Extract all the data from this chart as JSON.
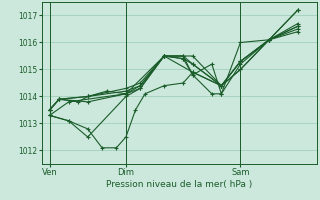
{
  "bg_color": "#cce8dc",
  "grid_color": "#99ccb3",
  "line_color": "#1a5c2a",
  "xlabel": "Pression niveau de la mer( hPa )",
  "xlabel_color": "#1a5c2a",
  "tick_color": "#1a5c2a",
  "ylim": [
    1011.5,
    1017.5
  ],
  "yticks": [
    1012,
    1013,
    1014,
    1015,
    1016,
    1017
  ],
  "xtick_labels": [
    "Ven",
    "Dim",
    "Sam"
  ],
  "xtick_positions": [
    0,
    48,
    120
  ],
  "vline_positions": [
    0,
    48,
    120
  ],
  "xlim": [
    -5,
    168
  ],
  "series": [
    [
      [
        0,
        1013.3
      ],
      [
        12,
        1013.8
      ],
      [
        48,
        1014.1
      ],
      [
        72,
        1015.5
      ],
      [
        90,
        1014.9
      ],
      [
        108,
        1014.4
      ],
      [
        120,
        1015.0
      ],
      [
        156,
        1017.2
      ]
    ],
    [
      [
        0,
        1013.3
      ],
      [
        12,
        1013.1
      ],
      [
        24,
        1012.8
      ],
      [
        33,
        1012.1
      ],
      [
        42,
        1012.1
      ],
      [
        48,
        1012.5
      ],
      [
        54,
        1013.5
      ],
      [
        60,
        1014.1
      ],
      [
        72,
        1014.4
      ],
      [
        84,
        1014.5
      ],
      [
        90,
        1014.9
      ],
      [
        108,
        1014.4
      ],
      [
        120,
        1015.0
      ],
      [
        156,
        1017.2
      ]
    ],
    [
      [
        0,
        1013.3
      ],
      [
        12,
        1013.1
      ],
      [
        24,
        1012.5
      ],
      [
        48,
        1014.0
      ],
      [
        57,
        1014.3
      ],
      [
        72,
        1015.5
      ],
      [
        84,
        1015.4
      ],
      [
        90,
        1014.8
      ],
      [
        102,
        1015.2
      ],
      [
        108,
        1014.1
      ],
      [
        120,
        1015.2
      ],
      [
        138,
        1016.1
      ],
      [
        156,
        1016.4
      ]
    ],
    [
      [
        0,
        1013.5
      ],
      [
        6,
        1013.9
      ],
      [
        18,
        1013.8
      ],
      [
        24,
        1014.0
      ],
      [
        36,
        1014.2
      ],
      [
        48,
        1014.1
      ],
      [
        57,
        1014.4
      ],
      [
        72,
        1015.5
      ],
      [
        84,
        1015.5
      ],
      [
        90,
        1014.8
      ],
      [
        102,
        1014.1
      ],
      [
        108,
        1014.1
      ],
      [
        120,
        1016.0
      ],
      [
        138,
        1016.1
      ],
      [
        156,
        1016.5
      ]
    ],
    [
      [
        0,
        1013.5
      ],
      [
        6,
        1013.9
      ],
      [
        24,
        1014.0
      ],
      [
        48,
        1014.2
      ],
      [
        57,
        1014.4
      ],
      [
        72,
        1015.5
      ],
      [
        84,
        1015.4
      ],
      [
        90,
        1015.2
      ],
      [
        108,
        1014.4
      ],
      [
        120,
        1015.3
      ],
      [
        138,
        1016.1
      ],
      [
        156,
        1016.6
      ]
    ],
    [
      [
        0,
        1013.5
      ],
      [
        6,
        1013.9
      ],
      [
        24,
        1013.8
      ],
      [
        48,
        1014.1
      ],
      [
        57,
        1014.3
      ],
      [
        72,
        1015.5
      ],
      [
        84,
        1015.5
      ],
      [
        90,
        1015.2
      ],
      [
        108,
        1014.4
      ],
      [
        120,
        1015.3
      ],
      [
        138,
        1016.1
      ],
      [
        156,
        1016.6
      ]
    ],
    [
      [
        0,
        1013.5
      ],
      [
        6,
        1013.9
      ],
      [
        24,
        1014.0
      ],
      [
        48,
        1014.3
      ],
      [
        57,
        1014.5
      ],
      [
        72,
        1015.5
      ],
      [
        90,
        1015.5
      ],
      [
        108,
        1014.4
      ],
      [
        120,
        1015.3
      ],
      [
        138,
        1016.1
      ],
      [
        156,
        1016.7
      ]
    ]
  ]
}
